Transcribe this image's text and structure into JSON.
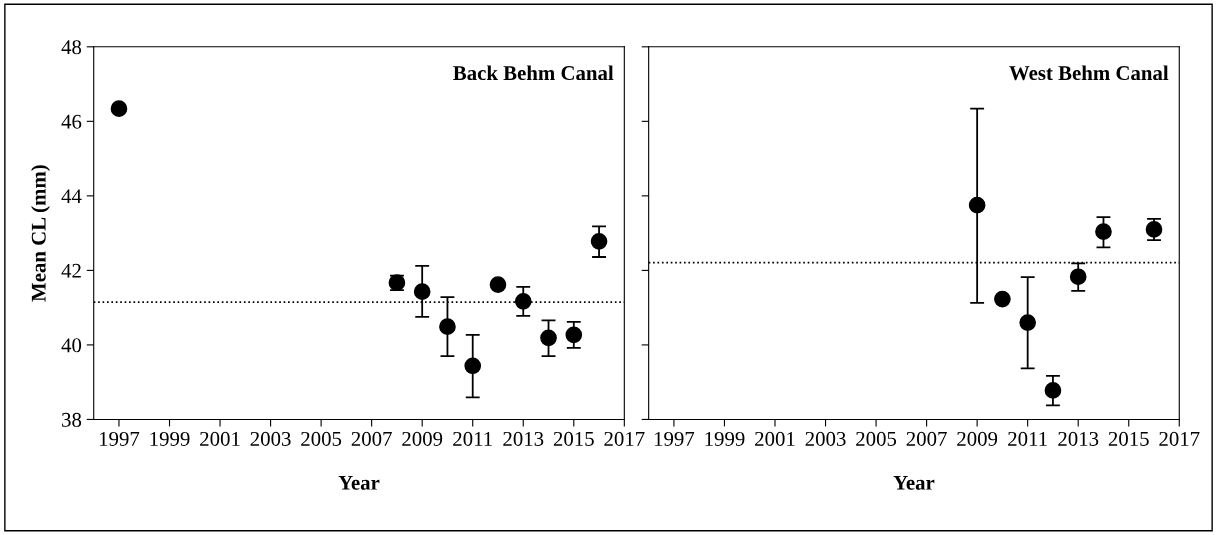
{
  "chart_data": [
    {
      "type": "scatter",
      "title": "Back Behm Canal",
      "xlabel": "Year",
      "ylabel": "Mean CL (mm)",
      "x": [
        1997,
        2008,
        2009,
        2010,
        2011,
        2012,
        2013,
        2014,
        2015,
        2016
      ],
      "values": [
        46.34,
        41.67,
        41.43,
        40.49,
        39.44,
        41.62,
        41.17,
        40.19,
        40.27,
        42.78
      ],
      "errors": [
        null,
        [
          41.47,
          41.86
        ],
        [
          40.75,
          42.12
        ],
        [
          39.7,
          41.28
        ],
        [
          38.59,
          40.27
        ],
        null,
        [
          40.78,
          41.56
        ],
        [
          39.7,
          40.66
        ],
        [
          39.92,
          40.62
        ],
        [
          42.36,
          43.18
        ]
      ],
      "color": "#000000",
      "marker": "circle",
      "xlim": [
        1996,
        2017
      ],
      "xticks": [
        1997,
        1999,
        2001,
        2003,
        2005,
        2007,
        2009,
        2011,
        2013,
        2015,
        2017
      ],
      "ylim": [
        38,
        48
      ],
      "yticks": [
        38,
        40,
        42,
        44,
        46,
        48
      ],
      "ref_lines": [
        {
          "axis": "y",
          "value": 41.15,
          "line_style": "dotted",
          "color": "#000000"
        }
      ],
      "grid": false,
      "legend": false
    },
    {
      "type": "scatter",
      "title": "West Behm Canal",
      "xlabel": "Year",
      "x": [
        2009,
        2010,
        2011,
        2012,
        2013,
        2014,
        2016
      ],
      "values": [
        43.75,
        41.23,
        40.6,
        38.78,
        41.83,
        43.04,
        43.1
      ],
      "errors": [
        [
          41.13,
          46.34
        ],
        null,
        [
          39.37,
          41.82
        ],
        [
          38.38,
          39.17
        ],
        [
          41.45,
          42.19
        ],
        [
          42.62,
          43.43
        ],
        [
          42.81,
          43.38
        ]
      ],
      "color": "#000000",
      "marker": "circle",
      "xlim": [
        1996,
        2017
      ],
      "xticks": [
        1997,
        1999,
        2001,
        2003,
        2005,
        2007,
        2009,
        2011,
        2013,
        2015,
        2017
      ],
      "ylim": [
        38,
        48
      ],
      "yticks": [
        38,
        40,
        42,
        44,
        46,
        48
      ],
      "tick_labels": "x",
      "ref_lines": [
        {
          "axis": "y",
          "value": 42.21,
          "line_style": "dotted",
          "color": "#000000"
        }
      ],
      "grid": false,
      "legend": false
    }
  ]
}
